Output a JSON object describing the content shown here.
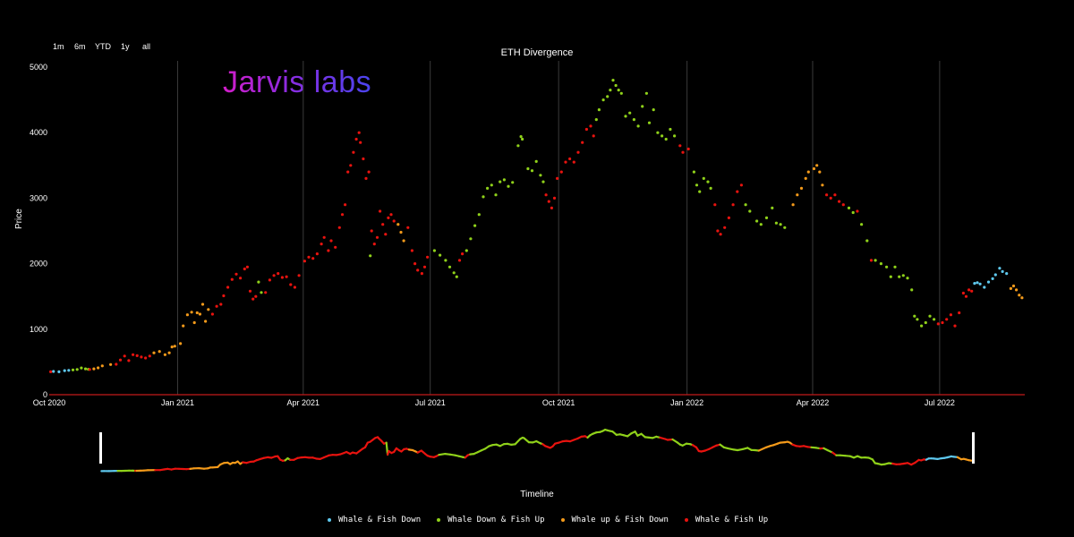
{
  "range_selector": [
    "1m",
    "6m",
    "YTD",
    "1y",
    "all"
  ],
  "brand": "Jarvis labs",
  "timeline_label": "Timeline",
  "colors": {
    "whale_fish_down": "#5ec8ee",
    "whale_down_fish_up": "#8fd11a",
    "whale_up_fish_down": "#f49a1a",
    "whale_fish_up": "#e8130f",
    "axis_line": "#c41a1a",
    "grid": "#3a3a3a"
  },
  "chart_data": {
    "type": "scatter",
    "title": "ETH Divergence",
    "xlabel": "",
    "ylabel": "Price",
    "ylim": [
      0,
      5000
    ],
    "xlim": [
      "2020-10-01",
      "2022-08-31"
    ],
    "y_ticks": [
      0,
      1000,
      2000,
      3000,
      4000,
      5000
    ],
    "x_ticks": [
      {
        "date": "2020-10-01",
        "label": "Oct 2020"
      },
      {
        "date": "2021-01-01",
        "label": "Jan 2021"
      },
      {
        "date": "2021-04-01",
        "label": "Apr 2021"
      },
      {
        "date": "2021-07-01",
        "label": "Jul 2021"
      },
      {
        "date": "2021-10-01",
        "label": "Oct 2021"
      },
      {
        "date": "2022-01-01",
        "label": "Jan 2022"
      },
      {
        "date": "2022-04-01",
        "label": "Apr 2022"
      },
      {
        "date": "2022-07-01",
        "label": "Jul 2022"
      }
    ],
    "grid": "vertical",
    "legend_position": "bottom",
    "series": [
      {
        "name": "Whale & Fish Down",
        "color": "#5ec8ee",
        "points": [
          [
            "2020-10-04",
            355
          ],
          [
            "2020-10-08",
            350
          ],
          [
            "2020-10-12",
            368
          ],
          [
            "2020-10-15",
            372
          ],
          [
            "2022-07-26",
            1700
          ],
          [
            "2022-07-28",
            1710
          ],
          [
            "2022-07-30",
            1690
          ],
          [
            "2022-08-02",
            1640
          ],
          [
            "2022-08-05",
            1720
          ],
          [
            "2022-08-08",
            1770
          ],
          [
            "2022-08-10",
            1830
          ],
          [
            "2022-08-13",
            1930
          ],
          [
            "2022-08-15",
            1880
          ],
          [
            "2022-08-18",
            1850
          ]
        ]
      },
      {
        "name": "Whale Down & Fish Up",
        "color": "#8fd11a",
        "points": [
          [
            "2020-10-18",
            378
          ],
          [
            "2020-10-21",
            385
          ],
          [
            "2020-10-24",
            408
          ],
          [
            "2020-10-27",
            395
          ],
          [
            "2020-10-29",
            388
          ],
          [
            "2021-02-28",
            1720
          ],
          [
            "2021-03-02",
            1560
          ],
          [
            "2021-05-19",
            2120
          ],
          [
            "2021-07-04",
            2200
          ],
          [
            "2021-07-08",
            2130
          ],
          [
            "2021-07-12",
            2050
          ],
          [
            "2021-07-15",
            1950
          ],
          [
            "2021-07-18",
            1860
          ],
          [
            "2021-07-20",
            1800
          ],
          [
            "2021-07-27",
            2200
          ],
          [
            "2021-07-30",
            2380
          ],
          [
            "2021-08-02",
            2580
          ],
          [
            "2021-08-05",
            2750
          ],
          [
            "2021-08-08",
            3020
          ],
          [
            "2021-08-11",
            3150
          ],
          [
            "2021-08-14",
            3200
          ],
          [
            "2021-08-17",
            3050
          ],
          [
            "2021-08-20",
            3250
          ],
          [
            "2021-08-23",
            3280
          ],
          [
            "2021-08-26",
            3180
          ],
          [
            "2021-08-29",
            3240
          ],
          [
            "2021-09-02",
            3800
          ],
          [
            "2021-09-04",
            3940
          ],
          [
            "2021-09-05",
            3900
          ],
          [
            "2021-09-09",
            3450
          ],
          [
            "2021-09-12",
            3420
          ],
          [
            "2021-09-15",
            3560
          ],
          [
            "2021-09-18",
            3350
          ],
          [
            "2021-09-20",
            3250
          ],
          [
            "2021-10-28",
            4200
          ],
          [
            "2021-10-30",
            4350
          ],
          [
            "2021-11-02",
            4500
          ],
          [
            "2021-11-05",
            4550
          ],
          [
            "2021-11-07",
            4650
          ],
          [
            "2021-11-09",
            4800
          ],
          [
            "2021-11-11",
            4720
          ],
          [
            "2021-11-13",
            4650
          ],
          [
            "2021-11-15",
            4600
          ],
          [
            "2021-11-18",
            4250
          ],
          [
            "2021-11-21",
            4300
          ],
          [
            "2021-11-24",
            4200
          ],
          [
            "2021-11-27",
            4100
          ],
          [
            "2021-11-30",
            4400
          ],
          [
            "2021-12-03",
            4600
          ],
          [
            "2021-12-05",
            4150
          ],
          [
            "2021-12-08",
            4350
          ],
          [
            "2021-12-11",
            4000
          ],
          [
            "2021-12-14",
            3950
          ],
          [
            "2021-12-17",
            3900
          ],
          [
            "2021-12-20",
            4050
          ],
          [
            "2021-12-23",
            3950
          ],
          [
            "2022-01-06",
            3400
          ],
          [
            "2022-01-08",
            3200
          ],
          [
            "2022-01-10",
            3100
          ],
          [
            "2022-01-13",
            3300
          ],
          [
            "2022-01-16",
            3250
          ],
          [
            "2022-01-18",
            3150
          ],
          [
            "2022-02-12",
            2900
          ],
          [
            "2022-02-15",
            2800
          ],
          [
            "2022-02-20",
            2650
          ],
          [
            "2022-02-23",
            2600
          ],
          [
            "2022-02-27",
            2700
          ],
          [
            "2022-03-03",
            2850
          ],
          [
            "2022-03-06",
            2620
          ],
          [
            "2022-03-09",
            2600
          ],
          [
            "2022-03-12",
            2550
          ],
          [
            "2022-04-27",
            2850
          ],
          [
            "2022-04-30",
            2780
          ],
          [
            "2022-05-06",
            2600
          ],
          [
            "2022-05-10",
            2350
          ],
          [
            "2022-05-16",
            2050
          ],
          [
            "2022-05-20",
            2000
          ],
          [
            "2022-05-24",
            1950
          ],
          [
            "2022-05-27",
            1800
          ],
          [
            "2022-05-30",
            1950
          ],
          [
            "2022-06-02",
            1800
          ],
          [
            "2022-06-05",
            1820
          ],
          [
            "2022-06-08",
            1780
          ],
          [
            "2022-06-11",
            1600
          ],
          [
            "2022-06-13",
            1200
          ],
          [
            "2022-06-15",
            1150
          ],
          [
            "2022-06-18",
            1050
          ],
          [
            "2022-06-21",
            1100
          ],
          [
            "2022-06-24",
            1200
          ],
          [
            "2022-06-27",
            1150
          ]
        ]
      },
      {
        "name": "Whale up & Fish Down",
        "color": "#f49a1a",
        "points": [
          [
            "2020-11-02",
            395
          ],
          [
            "2020-11-05",
            410
          ],
          [
            "2020-11-08",
            440
          ],
          [
            "2020-11-14",
            460
          ],
          [
            "2020-12-15",
            640
          ],
          [
            "2020-12-19",
            660
          ],
          [
            "2020-12-23",
            610
          ],
          [
            "2020-12-26",
            640
          ],
          [
            "2020-12-28",
            730
          ],
          [
            "2020-12-30",
            740
          ],
          [
            "2021-01-03",
            780
          ],
          [
            "2021-01-05",
            1050
          ],
          [
            "2021-01-08",
            1220
          ],
          [
            "2021-01-11",
            1260
          ],
          [
            "2021-01-13",
            1100
          ],
          [
            "2021-01-15",
            1250
          ],
          [
            "2021-01-17",
            1230
          ],
          [
            "2021-01-19",
            1380
          ],
          [
            "2021-01-21",
            1120
          ],
          [
            "2021-01-23",
            1300
          ],
          [
            "2021-06-08",
            2600
          ],
          [
            "2021-06-10",
            2480
          ],
          [
            "2021-06-12",
            2350
          ],
          [
            "2022-03-18",
            2900
          ],
          [
            "2022-03-21",
            3050
          ],
          [
            "2022-03-24",
            3150
          ],
          [
            "2022-03-27",
            3300
          ],
          [
            "2022-03-29",
            3400
          ],
          [
            "2022-04-02",
            3450
          ],
          [
            "2022-04-04",
            3500
          ],
          [
            "2022-04-06",
            3400
          ],
          [
            "2022-04-08",
            3200
          ],
          [
            "2022-08-21",
            1620
          ],
          [
            "2022-08-23",
            1660
          ],
          [
            "2022-08-25",
            1600
          ],
          [
            "2022-08-27",
            1520
          ],
          [
            "2022-08-29",
            1480
          ]
        ]
      },
      {
        "name": "Whale & Fish Up",
        "color": "#e8130f",
        "points": [
          [
            "2020-10-02",
            350
          ],
          [
            "2020-10-30",
            385
          ],
          [
            "2020-11-18",
            465
          ],
          [
            "2020-11-21",
            530
          ],
          [
            "2020-11-24",
            590
          ],
          [
            "2020-11-27",
            520
          ],
          [
            "2020-11-30",
            610
          ],
          [
            "2020-12-03",
            595
          ],
          [
            "2020-12-06",
            575
          ],
          [
            "2020-12-09",
            560
          ],
          [
            "2020-12-12",
            590
          ],
          [
            "2021-01-26",
            1230
          ],
          [
            "2021-01-29",
            1350
          ],
          [
            "2021-02-01",
            1380
          ],
          [
            "2021-02-03",
            1510
          ],
          [
            "2021-02-06",
            1640
          ],
          [
            "2021-02-09",
            1760
          ],
          [
            "2021-02-12",
            1840
          ],
          [
            "2021-02-15",
            1780
          ],
          [
            "2021-02-18",
            1920
          ],
          [
            "2021-02-20",
            1950
          ],
          [
            "2021-02-22",
            1580
          ],
          [
            "2021-02-24",
            1460
          ],
          [
            "2021-02-26",
            1500
          ],
          [
            "2021-03-05",
            1560
          ],
          [
            "2021-03-08",
            1750
          ],
          [
            "2021-03-11",
            1820
          ],
          [
            "2021-03-14",
            1850
          ],
          [
            "2021-03-17",
            1790
          ],
          [
            "2021-03-20",
            1800
          ],
          [
            "2021-03-23",
            1680
          ],
          [
            "2021-03-26",
            1640
          ],
          [
            "2021-03-29",
            1820
          ],
          [
            "2021-04-02",
            2040
          ],
          [
            "2021-04-05",
            2100
          ],
          [
            "2021-04-08",
            2080
          ],
          [
            "2021-04-11",
            2150
          ],
          [
            "2021-04-14",
            2300
          ],
          [
            "2021-04-16",
            2400
          ],
          [
            "2021-04-19",
            2200
          ],
          [
            "2021-04-21",
            2350
          ],
          [
            "2021-04-24",
            2250
          ],
          [
            "2021-04-27",
            2550
          ],
          [
            "2021-04-29",
            2750
          ],
          [
            "2021-05-01",
            2900
          ],
          [
            "2021-05-03",
            3400
          ],
          [
            "2021-05-05",
            3500
          ],
          [
            "2021-05-07",
            3700
          ],
          [
            "2021-05-09",
            3900
          ],
          [
            "2021-05-11",
            4000
          ],
          [
            "2021-05-12",
            3850
          ],
          [
            "2021-05-14",
            3600
          ],
          [
            "2021-05-16",
            3300
          ],
          [
            "2021-05-18",
            3400
          ],
          [
            "2021-05-20",
            2500
          ],
          [
            "2021-05-22",
            2300
          ],
          [
            "2021-05-24",
            2400
          ],
          [
            "2021-05-26",
            2800
          ],
          [
            "2021-05-28",
            2600
          ],
          [
            "2021-05-30",
            2450
          ],
          [
            "2021-06-01",
            2700
          ],
          [
            "2021-06-03",
            2750
          ],
          [
            "2021-06-05",
            2650
          ],
          [
            "2021-06-15",
            2550
          ],
          [
            "2021-06-18",
            2200
          ],
          [
            "2021-06-20",
            2000
          ],
          [
            "2021-06-22",
            1900
          ],
          [
            "2021-06-25",
            1850
          ],
          [
            "2021-06-27",
            1950
          ],
          [
            "2021-06-29",
            2100
          ],
          [
            "2021-07-22",
            2050
          ],
          [
            "2021-07-24",
            2150
          ],
          [
            "2021-09-22",
            3050
          ],
          [
            "2021-09-24",
            2950
          ],
          [
            "2021-09-26",
            2850
          ],
          [
            "2021-09-28",
            3000
          ],
          [
            "2021-09-30",
            3300
          ],
          [
            "2021-10-03",
            3400
          ],
          [
            "2021-10-06",
            3550
          ],
          [
            "2021-10-09",
            3600
          ],
          [
            "2021-10-12",
            3550
          ],
          [
            "2021-10-15",
            3700
          ],
          [
            "2021-10-18",
            3850
          ],
          [
            "2021-10-21",
            4050
          ],
          [
            "2021-10-24",
            4100
          ],
          [
            "2021-10-26",
            3950
          ],
          [
            "2021-12-27",
            3800
          ],
          [
            "2021-12-29",
            3700
          ],
          [
            "2022-01-02",
            3750
          ],
          [
            "2022-01-21",
            2900
          ],
          [
            "2022-01-23",
            2500
          ],
          [
            "2022-01-25",
            2450
          ],
          [
            "2022-01-28",
            2550
          ],
          [
            "2022-01-31",
            2700
          ],
          [
            "2022-02-03",
            2900
          ],
          [
            "2022-02-06",
            3100
          ],
          [
            "2022-02-09",
            3200
          ],
          [
            "2022-04-11",
            3050
          ],
          [
            "2022-04-14",
            3000
          ],
          [
            "2022-04-17",
            3050
          ],
          [
            "2022-04-20",
            2950
          ],
          [
            "2022-04-23",
            2900
          ],
          [
            "2022-05-03",
            2800
          ],
          [
            "2022-05-13",
            2050
          ],
          [
            "2022-06-30",
            1080
          ],
          [
            "2022-07-03",
            1100
          ],
          [
            "2022-07-06",
            1150
          ],
          [
            "2022-07-09",
            1220
          ],
          [
            "2022-07-12",
            1050
          ],
          [
            "2022-07-15",
            1250
          ],
          [
            "2022-07-18",
            1550
          ],
          [
            "2022-07-20",
            1500
          ],
          [
            "2022-07-22",
            1600
          ],
          [
            "2022-07-24",
            1580
          ]
        ]
      }
    ]
  }
}
